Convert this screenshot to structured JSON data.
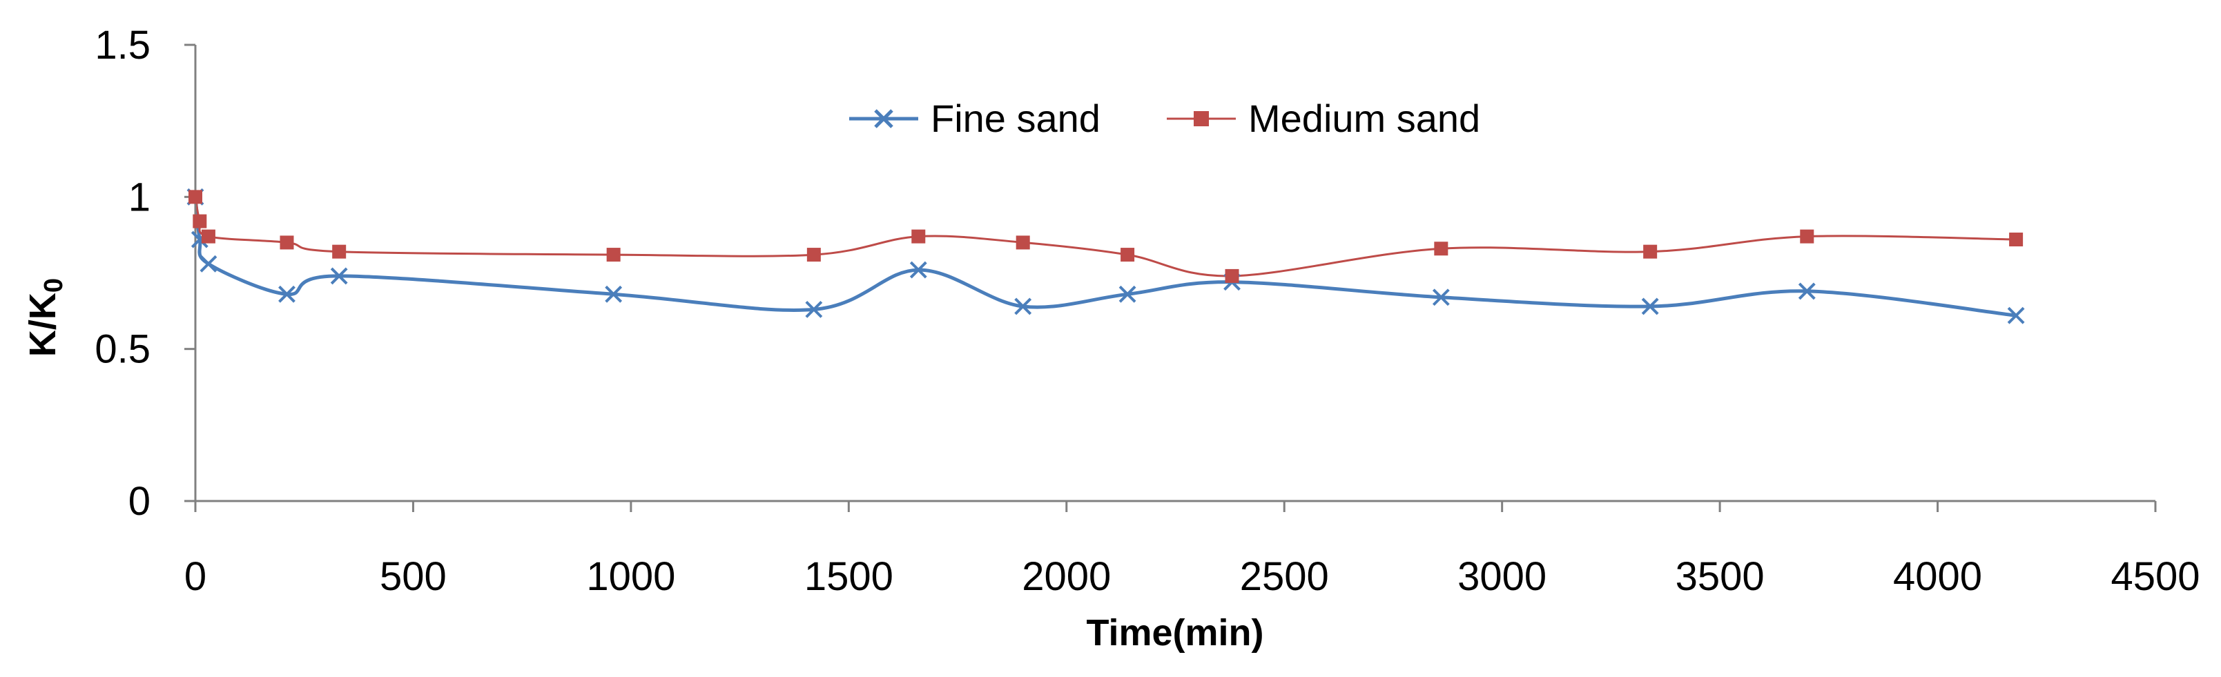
{
  "chart_data": {
    "type": "line",
    "title": "",
    "xlabel": "Time(min)",
    "ylabel_main": "K/K",
    "ylabel_sub": "0",
    "xlim": [
      0,
      4500
    ],
    "ylim": [
      0,
      1.5
    ],
    "x_ticks": [
      "0",
      "500",
      "1000",
      "1500",
      "2000",
      "2500",
      "3000",
      "3500",
      "4000",
      "4500"
    ],
    "y_ticks": [
      "0",
      "0.5",
      "1",
      "1.5"
    ],
    "grid": false,
    "legend_position": "top-center",
    "series": [
      {
        "name": "Fine sand",
        "color": "#4a7ebb",
        "marker": "x",
        "smooth": true,
        "x": [
          0,
          10,
          30,
          210,
          330,
          960,
          1420,
          1660,
          1900,
          2140,
          2380,
          2860,
          3340,
          3700,
          4180
        ],
        "y": [
          1.0,
          0.86,
          0.78,
          0.68,
          0.74,
          0.68,
          0.63,
          0.76,
          0.64,
          0.68,
          0.72,
          0.67,
          0.64,
          0.69,
          0.61
        ]
      },
      {
        "name": "Medium sand",
        "color": "#be4b48",
        "marker": "square",
        "smooth": true,
        "x": [
          0,
          10,
          30,
          210,
          330,
          960,
          1420,
          1660,
          1900,
          2140,
          2380,
          2860,
          3340,
          3700,
          4180
        ],
        "y": [
          1.0,
          0.92,
          0.87,
          0.85,
          0.82,
          0.81,
          0.81,
          0.87,
          0.85,
          0.81,
          0.74,
          0.83,
          0.82,
          0.87,
          0.86
        ]
      }
    ]
  }
}
